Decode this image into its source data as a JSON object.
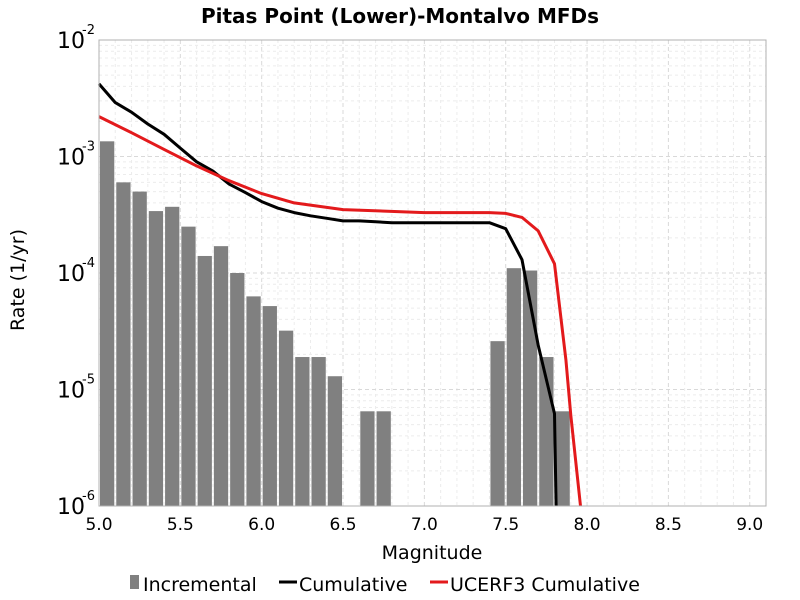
{
  "chart_data": {
    "type": "bar",
    "title": "Pitas Point (Lower)-Montalvo MFDs",
    "xlabel": "Magnitude",
    "ylabel": "Rate (1/yr)",
    "xlim": [
      5.0,
      9.1
    ],
    "ylim": [
      1e-06,
      0.01
    ],
    "y_scale": "log",
    "grid": true,
    "legend_placement": "bottom",
    "x_ticks": [
      {
        "value": 5.0,
        "label": "5.0"
      },
      {
        "value": 5.5,
        "label": "5.5"
      },
      {
        "value": 6.0,
        "label": "6.0"
      },
      {
        "value": 6.5,
        "label": "6.5"
      },
      {
        "value": 7.0,
        "label": "7.0"
      },
      {
        "value": 7.5,
        "label": "7.5"
      },
      {
        "value": 8.0,
        "label": "8.0"
      },
      {
        "value": 8.5,
        "label": "8.5"
      },
      {
        "value": 9.0,
        "label": "9.0"
      }
    ],
    "y_ticks": [
      {
        "value": 1e-06,
        "base": "10",
        "exp": "-6"
      },
      {
        "value": 1e-05,
        "base": "10",
        "exp": "-5"
      },
      {
        "value": 0.0001,
        "base": "10",
        "exp": "-4"
      },
      {
        "value": 0.001,
        "base": "10",
        "exp": "-3"
      },
      {
        "value": 0.01,
        "base": "10",
        "exp": "-2"
      }
    ],
    "series": [
      {
        "name": "Incremental",
        "type": "bar",
        "color": "#808080",
        "x": [
          5.05,
          5.15,
          5.25,
          5.35,
          5.45,
          5.55,
          5.65,
          5.75,
          5.85,
          5.95,
          6.05,
          6.15,
          6.25,
          6.35,
          6.45,
          6.65,
          6.75,
          7.45,
          7.55,
          7.65,
          7.75,
          7.85
        ],
        "values": [
          0.00135,
          0.0006,
          0.0005,
          0.00034,
          0.00037,
          0.00025,
          0.00014,
          0.00017,
          0.0001,
          6.3e-05,
          5.2e-05,
          3.2e-05,
          1.9e-05,
          1.9e-05,
          1.3e-05,
          6.5e-06,
          6.5e-06,
          2.6e-05,
          0.00011,
          0.000105,
          1.9e-05,
          6.5e-06
        ]
      },
      {
        "name": "Cumulative",
        "type": "line",
        "color": "#000000",
        "x": [
          5.0,
          5.1,
          5.2,
          5.3,
          5.4,
          5.5,
          5.6,
          5.7,
          5.8,
          5.9,
          6.0,
          6.1,
          6.2,
          6.3,
          6.4,
          6.5,
          6.6,
          6.7,
          6.8,
          7.4,
          7.5,
          7.6,
          7.7,
          7.8,
          7.81
        ],
        "values": [
          0.0042,
          0.0029,
          0.0024,
          0.0019,
          0.00155,
          0.00118,
          0.0009,
          0.00075,
          0.00058,
          0.00049,
          0.00041,
          0.00036,
          0.00033,
          0.00031,
          0.000295,
          0.00028,
          0.00028,
          0.000275,
          0.00027,
          0.00027,
          0.00024,
          0.00013,
          2.4e-05,
          6.2e-06,
          9e-07
        ]
      },
      {
        "name": "UCERF3 Cumulative",
        "type": "line",
        "color": "#e31a1c",
        "x": [
          5.0,
          5.2,
          5.4,
          5.6,
          5.8,
          6.0,
          6.2,
          6.5,
          7.0,
          7.4,
          7.5,
          7.6,
          7.7,
          7.8,
          7.87,
          7.9,
          7.96
        ],
        "values": [
          0.0022,
          0.0016,
          0.00115,
          0.00083,
          0.00062,
          0.00048,
          0.0004,
          0.00035,
          0.00033,
          0.00033,
          0.000325,
          0.0003,
          0.00023,
          0.00012,
          1.8e-05,
          6e-06,
          9e-07
        ]
      }
    ]
  }
}
